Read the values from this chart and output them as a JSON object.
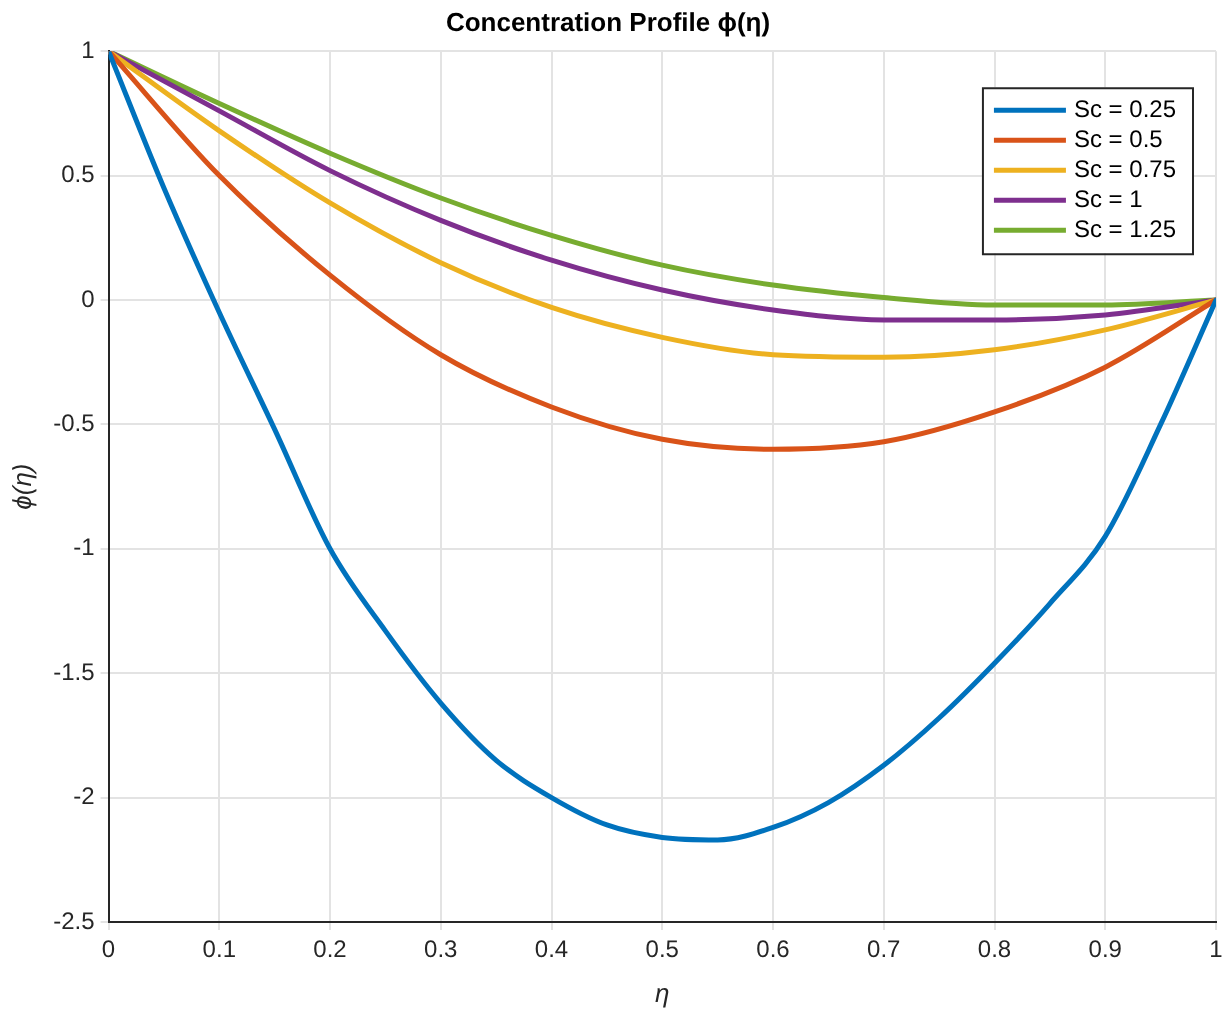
{
  "chart_data": {
    "type": "line",
    "title": "Concentration Profile ϕ(η)",
    "xlabel": "η",
    "ylabel": "ϕ(η)",
    "x": [
      0,
      0.05,
      0.1,
      0.15,
      0.2,
      0.25,
      0.3,
      0.35,
      0.4,
      0.45,
      0.5,
      0.55,
      0.6,
      0.65,
      0.7,
      0.75,
      0.8,
      0.85,
      0.9,
      0.95,
      1
    ],
    "series": [
      {
        "name": "Sc = 0.25",
        "color": "#0072bd",
        "values": [
          1,
          0.45,
          -0.05,
          -0.52,
          -1.0,
          -1.33,
          -1.62,
          -1.85,
          -2.0,
          -2.11,
          -2.16,
          -2.17,
          -2.12,
          -2.02,
          -1.87,
          -1.68,
          -1.46,
          -1.22,
          -0.95,
          -0.5,
          0
        ]
      },
      {
        "name": "Sc = 0.5",
        "color": "#d95319",
        "x": [
          0,
          0.1,
          0.2,
          0.3,
          0.4,
          0.5,
          0.6,
          0.7,
          0.8,
          0.9,
          1
        ],
        "values": [
          1,
          0.5,
          0.1,
          -0.22,
          -0.43,
          -0.56,
          -0.6,
          -0.57,
          -0.45,
          -0.27,
          0
        ]
      },
      {
        "name": "Sc = 0.75",
        "color": "#edb120",
        "x": [
          0,
          0.1,
          0.2,
          0.3,
          0.4,
          0.5,
          0.6,
          0.7,
          0.8,
          0.9,
          1
        ],
        "values": [
          1,
          0.68,
          0.39,
          0.15,
          -0.03,
          -0.15,
          -0.22,
          -0.23,
          -0.2,
          -0.12,
          0
        ]
      },
      {
        "name": "Sc = 1",
        "color": "#7e2f8e",
        "x": [
          0,
          0.1,
          0.2,
          0.3,
          0.4,
          0.5,
          0.6,
          0.7,
          0.8,
          0.9,
          1
        ],
        "values": [
          1,
          0.76,
          0.52,
          0.32,
          0.16,
          0.04,
          -0.04,
          -0.08,
          -0.08,
          -0.06,
          0
        ]
      },
      {
        "name": "Sc = 1.25",
        "color": "#77ac30",
        "x": [
          0,
          0.1,
          0.2,
          0.3,
          0.4,
          0.5,
          0.6,
          0.7,
          0.8,
          0.9,
          1
        ],
        "values": [
          1,
          0.79,
          0.59,
          0.41,
          0.26,
          0.14,
          0.06,
          0.01,
          -0.02,
          -0.02,
          0
        ]
      }
    ],
    "xlim": [
      0,
      1
    ],
    "xticks": [
      0,
      0.1,
      0.2,
      0.3,
      0.4,
      0.5,
      0.6,
      0.7,
      0.8,
      0.9,
      1
    ],
    "ylim": [
      -2.5,
      1
    ],
    "yticks": [
      -2.5,
      -2,
      -1.5,
      -1,
      -0.5,
      0,
      0.5,
      1
    ],
    "grid": true,
    "legend": "top right",
    "marker": "none",
    "line_style": "solid"
  }
}
